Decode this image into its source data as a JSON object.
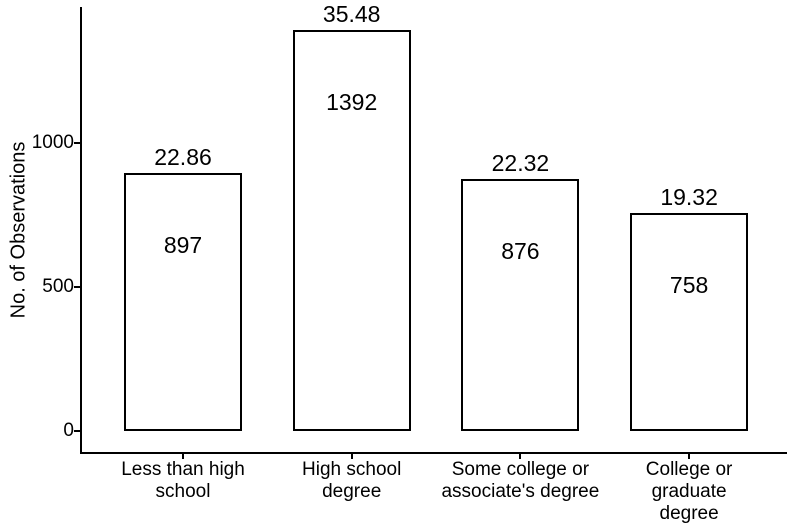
{
  "chart_data": {
    "type": "bar",
    "title": "",
    "xlabel": "",
    "ylabel": "No. of Observations",
    "categories": [
      "Less than high\nschool",
      "High school\ndegree",
      "Some college or\nassociate's degree",
      "College or\ngraduate degree"
    ],
    "values": [
      897,
      1392,
      876,
      758
    ],
    "bar_top_labels": [
      "22.86",
      "35.48",
      "22.32",
      "19.32"
    ],
    "bar_inner_labels": [
      "897",
      "1392",
      "876",
      "758"
    ],
    "yticks": [
      0,
      500,
      1000
    ],
    "ylim": [
      0,
      1461
    ],
    "grid": false,
    "legend": false,
    "colors": {
      "bar_fill": "#ffffff",
      "bar_border": "#000000",
      "axis": "#000000",
      "text": "#000000",
      "background": "#ffffff"
    }
  }
}
